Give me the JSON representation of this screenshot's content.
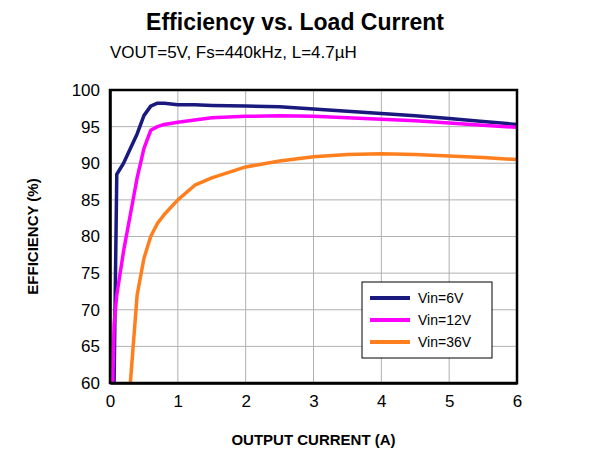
{
  "chart_data": {
    "type": "line",
    "title": "Efficiency vs. Load Current",
    "subtitle": "VOUT=5V, Fs=440kHz, L=4.7µH",
    "x_label": "OUTPUT CURRENT (A)",
    "y_label": "EFFICIENCY (%)",
    "x": [
      0.04,
      0.06,
      0.1,
      0.2,
      0.3,
      0.35,
      0.4,
      0.5,
      0.6,
      0.7,
      0.8,
      1,
      1.25,
      1.5,
      2,
      2.5,
      3,
      3.5,
      4,
      4.5,
      5,
      5.5,
      6
    ],
    "series": [
      {
        "name": "Vin=6V",
        "color": "#1a1a7e",
        "values": [
          null,
          60,
          88.5,
          90,
          92,
          93,
          94,
          96.5,
          97.8,
          98.2,
          98.2,
          98,
          98,
          97.9,
          97.8,
          97.7,
          97.4,
          97.1,
          96.8,
          96.5,
          96.1,
          95.7,
          95.3
        ]
      },
      {
        "name": "Vin=12V",
        "color": "#ff00ff",
        "values": [
          60,
          68,
          72,
          78,
          83,
          85.5,
          88,
          92,
          94.5,
          95,
          95.3,
          95.6,
          95.9,
          96.2,
          96.4,
          96.5,
          96.4,
          96.2,
          96,
          95.8,
          95.5,
          95.2,
          94.9
        ]
      },
      {
        "name": "Vin=36V",
        "color": "#ff7f1e",
        "values": [
          null,
          null,
          null,
          null,
          60,
          66,
          72,
          77,
          80,
          81.8,
          83,
          85,
          87,
          88,
          89.5,
          90.3,
          90.9,
          91.2,
          91.3,
          91.2,
          91,
          90.8,
          90.5
        ]
      }
    ],
    "xlim": [
      0,
      6
    ],
    "xticks": [
      0,
      1,
      2,
      3,
      4,
      5,
      6
    ],
    "ylim": [
      60,
      100
    ],
    "yticks": [
      60,
      65,
      70,
      75,
      80,
      85,
      90,
      95,
      100
    ],
    "grid": true,
    "legend": "lower right"
  }
}
